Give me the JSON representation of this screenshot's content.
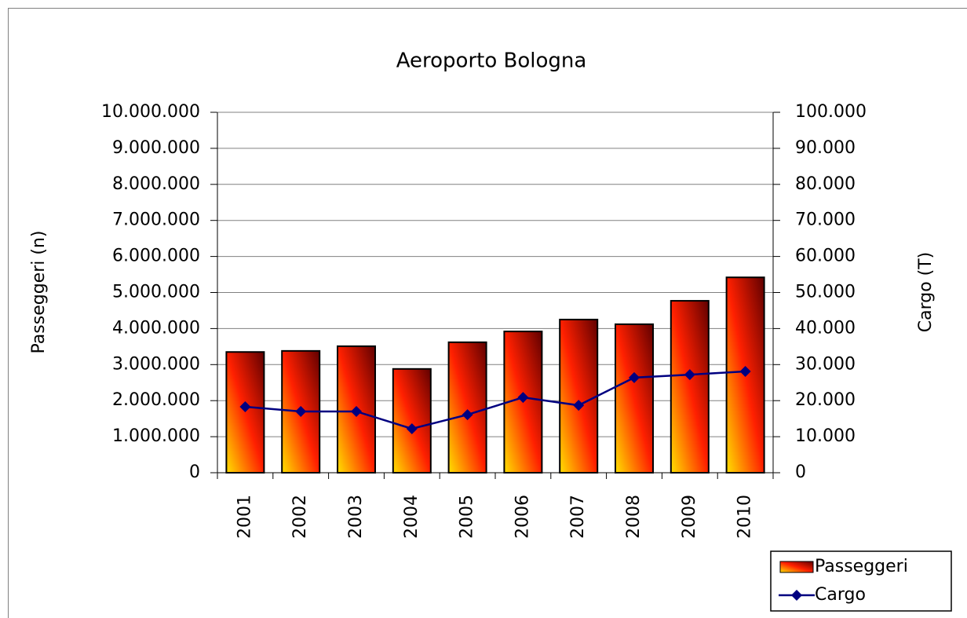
{
  "chart_data": {
    "type": "bar",
    "title": "Aeroporto Bologna",
    "y_label": "Passeggeri (n)",
    "y2_label": "Cargo (T)",
    "categories": [
      "2001",
      "2002",
      "2003",
      "2004",
      "2005",
      "2006",
      "2007",
      "2008",
      "2009",
      "2010"
    ],
    "series": [
      {
        "name": "Passeggeri",
        "type": "bar",
        "color": "#ff2000",
        "values": [
          3350000,
          3380000,
          3510000,
          2880000,
          3620000,
          3920000,
          4250000,
          4120000,
          4770000,
          5420000
        ]
      },
      {
        "name": "Cargo",
        "type": "line",
        "axis": "y2",
        "color": "#000080",
        "values": [
          18300,
          17000,
          17000,
          12200,
          16100,
          20900,
          18700,
          26400,
          27200,
          28100
        ]
      }
    ],
    "ylim": [
      0,
      10000000
    ],
    "yticks": [
      0,
      {
        "value": 1000000,
        "label": "1.000.000"
      },
      {
        "value": 2000000,
        "label": "2.000.000"
      },
      {
        "value": 3000000,
        "label": "3.000.000"
      },
      {
        "value": 4000000,
        "label": "4.000.000"
      },
      {
        "value": 5000000,
        "label": "5.000.000"
      },
      {
        "value": 6000000,
        "label": "6.000.000"
      },
      {
        "value": 7000000,
        "label": "7.000.000"
      },
      {
        "value": 8000000,
        "label": "8.000.000"
      },
      {
        "value": 9000000,
        "label": "9.000.000"
      },
      {
        "value": 10000000,
        "label": "10.000.000"
      }
    ],
    "y2lim": [
      0,
      100000
    ],
    "y2ticks": [
      0,
      {
        "value": 10000,
        "label": "10.000"
      },
      {
        "value": 20000,
        "label": "20.000"
      },
      {
        "value": 30000,
        "label": "30.000"
      },
      {
        "value": 40000,
        "label": "40.000"
      },
      {
        "value": 50000,
        "label": "50.000"
      },
      {
        "value": 60000,
        "label": "60.000"
      },
      {
        "value": 70000,
        "label": "70.000"
      },
      {
        "value": 80000,
        "label": "80.000"
      },
      {
        "value": 90000,
        "label": "90.000"
      },
      {
        "value": 100000,
        "label": "100.000"
      }
    ],
    "grid": true,
    "legend": "bottom-right"
  }
}
